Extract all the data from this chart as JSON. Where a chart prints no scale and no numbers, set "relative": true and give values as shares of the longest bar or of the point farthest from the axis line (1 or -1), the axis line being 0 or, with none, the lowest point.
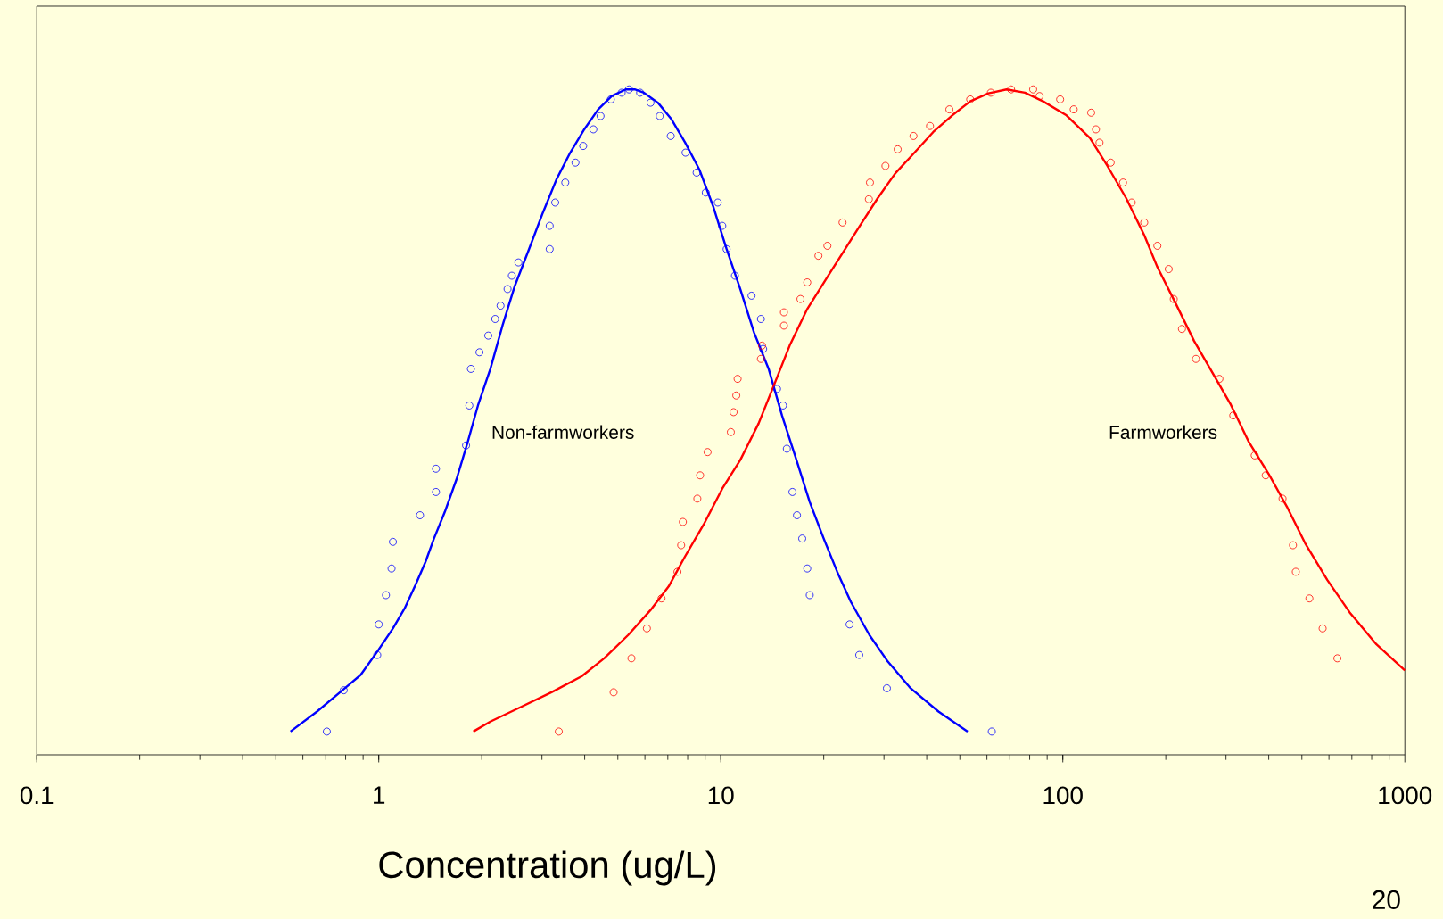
{
  "chart_data": {
    "type": "line",
    "relative": true,
    "log": "x",
    "xlabel": "Concentration (ug/L)",
    "xlim": [
      0.1,
      1000
    ],
    "xticks": [
      0.1,
      1,
      10,
      100,
      1000
    ],
    "annotations": [
      "20"
    ],
    "series": [
      {
        "type": "scatter",
        "marker": "circle",
        "color": "#0000ff",
        "x": [
          0.705,
          0.79,
          0.99,
          1.0,
          1.05,
          1.09,
          1.1,
          1.32,
          1.47,
          1.47,
          1.8,
          1.84,
          1.86,
          1.97,
          2.09,
          2.19,
          2.27,
          2.38,
          2.45,
          2.56,
          3.16,
          3.16,
          3.28,
          3.51,
          3.76,
          3.96,
          4.24,
          4.45,
          4.77,
          5.13,
          5.39,
          5.81,
          6.23,
          6.63,
          7.14,
          7.89,
          8.5,
          9.04,
          9.8,
          10.1,
          10.4,
          11.0,
          12.3,
          13.1,
          13.3,
          14.6,
          15.2,
          15.6,
          16.2,
          16.7,
          17.3,
          17.9,
          18.2,
          23.8,
          25.4,
          30.6,
          62.0
        ],
        "values": [
          0.035,
          0.097,
          0.15,
          0.196,
          0.24,
          0.28,
          0.32,
          0.36,
          0.395,
          0.43,
          0.465,
          0.525,
          0.58,
          0.605,
          0.63,
          0.655,
          0.675,
          0.7,
          0.72,
          0.74,
          0.76,
          0.795,
          0.83,
          0.86,
          0.89,
          0.915,
          0.94,
          0.96,
          0.985,
          0.995,
          1.0,
          0.995,
          0.98,
          0.96,
          0.93,
          0.905,
          0.875,
          0.845,
          0.83,
          0.795,
          0.76,
          0.72,
          0.69,
          0.655,
          0.61,
          0.55,
          0.525,
          0.46,
          0.395,
          0.36,
          0.325,
          0.28,
          0.24,
          0.196,
          0.15,
          0.1,
          0.035
        ]
      },
      {
        "marker": "none",
        "name": "Non-farmworkers",
        "color": "#0000ff",
        "x": [
          0.552,
          0.66,
          0.796,
          0.885,
          0.99,
          1.1,
          1.19,
          1.28,
          1.37,
          1.45,
          1.56,
          1.69,
          1.82,
          1.95,
          2.12,
          2.3,
          2.5,
          2.75,
          3.02,
          3.31,
          3.63,
          3.99,
          4.38,
          4.8,
          5.27,
          5.6,
          5.96,
          6.55,
          7.18,
          7.87,
          8.65,
          9.49,
          10.4,
          11.4,
          12.5,
          13.8,
          15.1,
          16.6,
          18.2,
          20.0,
          21.9,
          24.0,
          27.2,
          30.8,
          35.9,
          43.3,
          52.7
        ],
        "values": [
          0.035,
          0.065,
          0.1,
          0.12,
          0.155,
          0.19,
          0.22,
          0.255,
          0.29,
          0.325,
          0.365,
          0.415,
          0.47,
          0.525,
          0.58,
          0.645,
          0.705,
          0.76,
          0.815,
          0.865,
          0.905,
          0.94,
          0.97,
          0.99,
          1.0,
          1.0,
          0.995,
          0.98,
          0.955,
          0.92,
          0.88,
          0.825,
          0.76,
          0.7,
          0.635,
          0.58,
          0.51,
          0.445,
          0.38,
          0.325,
          0.275,
          0.23,
          0.18,
          0.14,
          0.1,
          0.065,
          0.035
        ]
      },
      {
        "type": "scatter",
        "marker": "circle",
        "color": "#ff0000",
        "x": [
          3.36,
          4.86,
          5.48,
          6.08,
          6.71,
          7.47,
          7.66,
          7.75,
          8.54,
          8.7,
          9.15,
          10.7,
          10.9,
          11.1,
          11.2,
          13.1,
          13.2,
          15.3,
          15.3,
          17.1,
          17.9,
          19.3,
          20.5,
          22.7,
          27.1,
          27.3,
          30.3,
          32.9,
          36.6,
          40.9,
          46.6,
          53.6,
          61.6,
          70.6,
          81.9,
          85.5,
          98.2,
          107.6,
          121,
          125,
          128,
          138,
          150,
          159,
          173,
          189,
          204,
          211,
          223,
          245,
          287,
          315,
          364,
          392,
          439,
          471,
          480,
          526,
          575,
          635
        ],
        "values": [
          0.035,
          0.094,
          0.145,
          0.19,
          0.235,
          0.275,
          0.315,
          0.35,
          0.385,
          0.42,
          0.455,
          0.485,
          0.515,
          0.54,
          0.565,
          0.595,
          0.615,
          0.645,
          0.665,
          0.685,
          0.71,
          0.75,
          0.765,
          0.8,
          0.835,
          0.86,
          0.885,
          0.91,
          0.93,
          0.945,
          0.97,
          0.985,
          0.995,
          1.0,
          1.0,
          0.99,
          0.985,
          0.97,
          0.965,
          0.94,
          0.92,
          0.89,
          0.86,
          0.83,
          0.8,
          0.765,
          0.73,
          0.685,
          0.64,
          0.595,
          0.565,
          0.51,
          0.45,
          0.42,
          0.385,
          0.315,
          0.275,
          0.235,
          0.19,
          0.145
        ]
      },
      {
        "marker": "none",
        "name": "Farmworkers",
        "color": "#ff0000",
        "x": [
          1.89,
          2.12,
          2.56,
          3.2,
          3.92,
          4.56,
          5.36,
          6.22,
          7.04,
          7.84,
          8.91,
          10.1,
          11.4,
          12.9,
          14.6,
          15.9,
          17.9,
          20.6,
          23.3,
          25.5,
          28.8,
          32.4,
          37.0,
          41.8,
          47.5,
          53.6,
          60.6,
          68.5,
          77.5,
          87.6,
          102.5,
          120,
          135,
          153,
          173,
          189,
          214,
          242,
          274,
          310,
          350,
          400,
          452,
          511,
          593,
          690,
          826,
          1000
        ],
        "values": [
          0.035,
          0.05,
          0.07,
          0.094,
          0.118,
          0.145,
          0.18,
          0.217,
          0.253,
          0.297,
          0.346,
          0.4,
          0.443,
          0.498,
          0.567,
          0.615,
          0.67,
          0.72,
          0.763,
          0.795,
          0.837,
          0.874,
          0.906,
          0.936,
          0.961,
          0.982,
          0.994,
          1.0,
          0.995,
          0.982,
          0.961,
          0.927,
          0.885,
          0.837,
          0.781,
          0.733,
          0.678,
          0.622,
          0.574,
          0.526,
          0.47,
          0.422,
          0.373,
          0.318,
          0.263,
          0.214,
          0.166,
          0.127
        ]
      }
    ]
  }
}
